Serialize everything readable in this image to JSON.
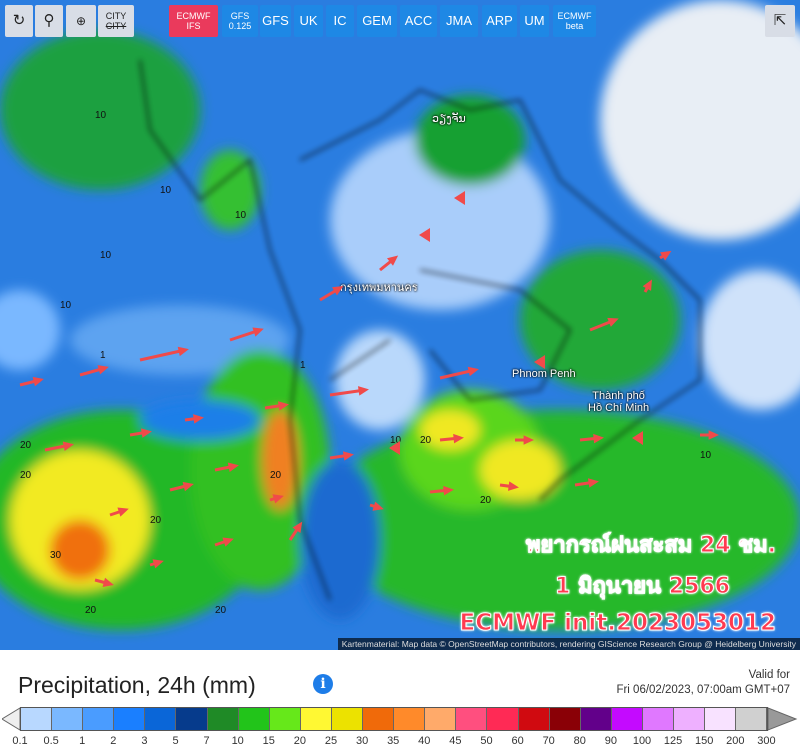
{
  "toolbar": {
    "tools": [
      {
        "name": "reload-icon",
        "glyph": "↻"
      },
      {
        "name": "map-pin-icon",
        "glyph": "⚲"
      },
      {
        "name": "zoom-icon",
        "glyph": "🔍"
      }
    ],
    "city_label": "CITY",
    "city_label_struck": "CITY",
    "models": [
      {
        "label": "ECMWF",
        "sub": "IFS",
        "active": true
      },
      {
        "label": "GFS",
        "sub": "0.125"
      },
      {
        "label": "GFS"
      },
      {
        "label": "UK"
      },
      {
        "label": "IC"
      },
      {
        "label": "GEM"
      },
      {
        "label": "ACC"
      },
      {
        "label": "JMA"
      },
      {
        "label": "ARP"
      },
      {
        "label": "UM"
      },
      {
        "label": "ECMWF",
        "sub": "beta"
      }
    ],
    "share_icon": "share-icon"
  },
  "map": {
    "cities": {
      "vientiane": "ວຽງຈັນ",
      "bangkok": "กรุงเทพมหานคร",
      "phnom_penh": "Phnom Penh",
      "hcm_1": "Thành phố",
      "hcm_2": "Hồ Chí Minh"
    },
    "overlay": {
      "line1": "พยากรณ์ฝนสะสม 24 ชม.",
      "line2": "1 มิถุนายน 2566",
      "line3": "ECMWF init.2023053012"
    },
    "contour_labels": [
      "10",
      "10",
      "10",
      "10",
      "10",
      "20",
      "20",
      "20",
      "30",
      "20",
      "20",
      "1",
      "1",
      "10",
      "10",
      "20",
      "20",
      "20"
    ],
    "attribution": "Kartenmaterial: Map data © OpenStreetMap contributors, rendering GIScience Research Group @ Heidelberg University"
  },
  "legend": {
    "title": "Precipitation, 24h (mm)",
    "info_icon": "info-icon",
    "valid_label": "Valid for",
    "valid_time": "Fri 06/02/2023, 07:00am GMT+07",
    "colors": [
      "#b8d8ff",
      "#7ab8ff",
      "#4a9cff",
      "#1a7fff",
      "#0a66d8",
      "#063b8c",
      "#1f8a26",
      "#22c41a",
      "#66e81a",
      "#fff833",
      "#ece200",
      "#f06a0a",
      "#ff8a2a",
      "#ffaa6a",
      "#ff4f7f",
      "#ff2a55",
      "#d00a10",
      "#8a0006",
      "#62008a",
      "#c40aff",
      "#e078ff",
      "#eeb0ff",
      "#f8e2ff",
      "#d0d0d0"
    ],
    "ticks": [
      "0.1",
      "0.5",
      "1",
      "2",
      "3",
      "5",
      "7",
      "10",
      "15",
      "20",
      "25",
      "30",
      "35",
      "40",
      "45",
      "50",
      "60",
      "70",
      "80",
      "90",
      "100",
      "125",
      "150",
      "200",
      "300"
    ]
  }
}
